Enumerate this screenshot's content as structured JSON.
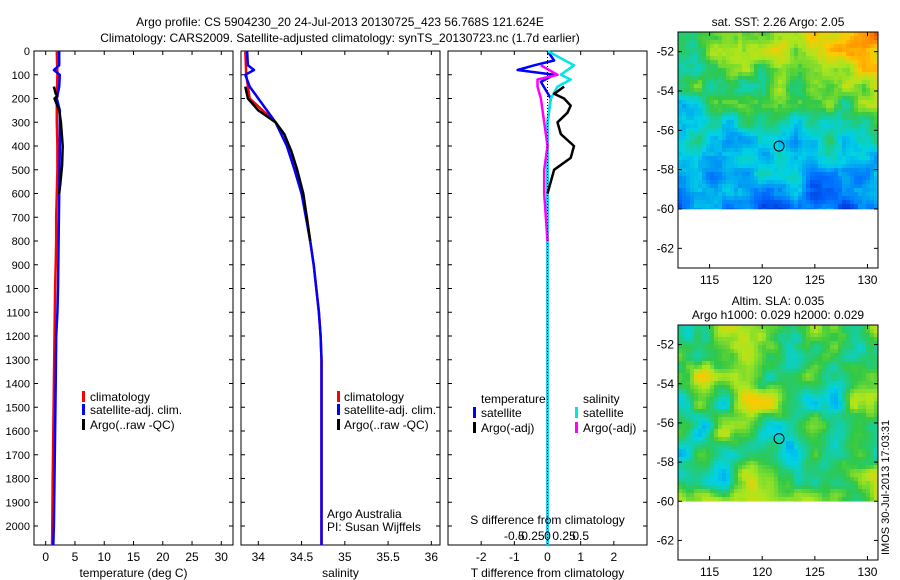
{
  "figure": {
    "title_line1": "Argo profile: CS 5904230_20 24-Jul-2013 20130725_423 56.768S 121.624E",
    "title_line2": "Climatology: CARS2009. Satellite-adjusted climatology: synTS_20130723.nc (1.7d earlier)",
    "footer_stamp": "IMOS 30-Jul-2013 17:03:31",
    "colors": {
      "climatology": "#ff0000",
      "satellite": "#0000ff",
      "argo": "#000000",
      "sal_satellite": "#00e5e5",
      "sal_argo": "#ff00ff"
    }
  },
  "chart_data": [
    {
      "type": "line",
      "id": "temperature",
      "xlabel": "temperature (deg C)",
      "xlim": [
        -2,
        32
      ],
      "ylim": [
        2080,
        0
      ],
      "x_ticks": [
        0,
        5,
        10,
        15,
        20,
        25,
        30
      ],
      "y_ticks": [
        0,
        100,
        200,
        300,
        400,
        500,
        600,
        700,
        800,
        900,
        1000,
        1100,
        1200,
        1300,
        1400,
        1500,
        1600,
        1700,
        1800,
        1900,
        2000
      ],
      "legend": [
        "climatology",
        "satellite-adj. clim.",
        "Argo(..raw -QC)"
      ],
      "series": [
        {
          "name": "climatology",
          "color": "#ff0000",
          "x": [
            1.9,
            2.0,
            1.9,
            1.9,
            2.0,
            2.0,
            1.9,
            1.8,
            1.8,
            1.7,
            1.6,
            1.5,
            1.4,
            1.3,
            1.2,
            1.1
          ],
          "y": [
            0,
            100,
            200,
            300,
            400,
            500,
            600,
            700,
            800,
            900,
            1000,
            1200,
            1400,
            1600,
            1800,
            2080
          ]
        },
        {
          "name": "satellite-adj. clim.",
          "color": "#0000ff",
          "x": [
            2.3,
            2.3,
            1.4,
            2.4,
            2.3,
            1.9,
            2.4,
            2.4,
            2.3,
            2.2,
            2.1,
            2.0,
            1.8,
            1.7,
            1.6,
            1.5,
            1.4,
            1.3
          ],
          "y": [
            0,
            60,
            80,
            100,
            150,
            200,
            250,
            400,
            600,
            800,
            1000,
            1100,
            1200,
            1400,
            1600,
            1800,
            2000,
            2080
          ]
        },
        {
          "name": "Argo(..raw -QC)",
          "color": "#000000",
          "x": [
            1.4,
            1.7,
            2.0,
            1.5,
            2.3,
            2.6,
            2.9,
            2.8,
            2.5,
            2.3
          ],
          "y": [
            150,
            180,
            190,
            200,
            250,
            300,
            400,
            480,
            560,
            600
          ]
        }
      ]
    },
    {
      "type": "line",
      "id": "salinity",
      "xlabel": "salinity",
      "xlim": [
        33.8,
        36.1
      ],
      "ylim": [
        2080,
        0
      ],
      "x_ticks": [
        34,
        34.5,
        35,
        35.5,
        36
      ],
      "x_tick_labels": [
        "34",
        "34.5",
        "35",
        "35.5",
        "36"
      ],
      "legend": [
        "climatology",
        "satellite-adj. clim.",
        "Argo(..raw -QC)"
      ],
      "annotation_line1": "Argo Australia",
      "annotation_line2": "PI: Susan Wijffels",
      "series": [
        {
          "name": "climatology",
          "color": "#ff0000",
          "x": [
            33.85,
            33.86,
            33.9,
            34.05,
            34.2,
            34.33,
            34.42,
            34.5,
            34.56,
            34.6,
            34.64,
            34.67,
            34.7,
            34.72,
            34.73,
            34.73,
            34.73
          ],
          "y": [
            0,
            100,
            200,
            250,
            300,
            400,
            500,
            600,
            700,
            800,
            900,
            1000,
            1100,
            1200,
            1300,
            1600,
            2080
          ]
        },
        {
          "name": "satellite-adj. clim.",
          "color": "#0000ff",
          "x": [
            33.87,
            33.88,
            33.95,
            33.85,
            33.9,
            34.0,
            34.2,
            34.33,
            34.42,
            34.5,
            34.55,
            34.6,
            34.64,
            34.67,
            34.7,
            34.72,
            34.73,
            34.73,
            34.73
          ],
          "y": [
            0,
            60,
            80,
            100,
            150,
            200,
            300,
            400,
            500,
            600,
            700,
            800,
            900,
            1000,
            1100,
            1200,
            1300,
            1600,
            2080
          ]
        },
        {
          "name": "Argo(..raw -QC)",
          "color": "#000000",
          "x": [
            33.85,
            33.88,
            34.0,
            34.2,
            34.3,
            34.38,
            34.45,
            34.52,
            34.56,
            34.6
          ],
          "y": [
            150,
            200,
            250,
            300,
            350,
            420,
            500,
            600,
            700,
            800
          ]
        }
      ]
    },
    {
      "type": "line",
      "id": "difference",
      "xlabel": "T difference from climatology",
      "xlabel_top": "S difference from climatology",
      "xlim": [
        -3,
        3
      ],
      "ylim": [
        2080,
        0
      ],
      "x_ticks": [
        -2,
        -1,
        0,
        1,
        2
      ],
      "s_ticks": [
        -0.5,
        -0.25,
        0,
        0.25,
        0.5
      ],
      "s_tick_labels": [
        "-0.5",
        "-0.25",
        "0",
        "0.25",
        "0.5"
      ],
      "legend_heading_left": "temperature",
      "legend_heading_right": "salinity",
      "legend": [
        "satellite",
        "Argo(-adj)",
        "satellite",
        "Argo(-adj)"
      ],
      "series": [
        {
          "name": "temperature satellite",
          "color": "#0000ff",
          "x": [
            0.0,
            0.2,
            -0.4,
            -0.9,
            0.2,
            -0.2,
            0.1,
            0.0,
            0.0,
            0.0,
            0.0
          ],
          "y": [
            0,
            40,
            60,
            80,
            100,
            130,
            200,
            300,
            500,
            1000,
            2080
          ]
        },
        {
          "name": "salinity satellite",
          "color": "#00e5e5",
          "x": [
            0.0,
            0.8,
            0.4,
            0.7,
            0.3,
            0.1,
            0.0,
            0.0,
            0.0
          ],
          "y": [
            0,
            60,
            100,
            120,
            150,
            200,
            300,
            600,
            2080
          ]
        },
        {
          "name": "temperature Argo(-adj)",
          "color": "#000000",
          "x": [
            0.5,
            0.2,
            0.5,
            0.7,
            0.6,
            0.3,
            0.4,
            0.8,
            0.7,
            0.2,
            0.0
          ],
          "y": [
            150,
            180,
            200,
            230,
            260,
            300,
            350,
            400,
            450,
            500,
            600
          ]
        },
        {
          "name": "salinity Argo(-adj)",
          "color": "#ff00ff",
          "x": [
            -0.2,
            0.3,
            -0.3,
            -0.3,
            -0.2,
            -0.1,
            0.0,
            -0.1,
            -0.1,
            0.0
          ],
          "y": [
            60,
            100,
            120,
            150,
            200,
            300,
            400,
            500,
            600,
            800
          ]
        }
      ]
    },
    {
      "type": "heatmap",
      "id": "sst-map",
      "title": "sat. SST: 2.26 Argo: 2.05",
      "xlim": [
        112,
        131
      ],
      "ylim": [
        -63,
        -51
      ],
      "x_ticks": [
        115,
        120,
        125,
        130
      ],
      "y_ticks": [
        -52,
        -54,
        -56,
        -58,
        -60,
        -62
      ],
      "profile_location": [
        121.6,
        -56.8
      ]
    },
    {
      "type": "heatmap",
      "id": "sla-map",
      "title_line1": "Altim. SLA: 0.035",
      "title_line2": "Argo h1000: 0.029 h2000: 0.029",
      "xlim": [
        112,
        131
      ],
      "ylim": [
        -63,
        -51
      ],
      "x_ticks": [
        115,
        120,
        125,
        130
      ],
      "y_ticks": [
        -52,
        -54,
        -56,
        -58,
        -60,
        -62
      ],
      "profile_location": [
        121.6,
        -56.8
      ]
    }
  ]
}
